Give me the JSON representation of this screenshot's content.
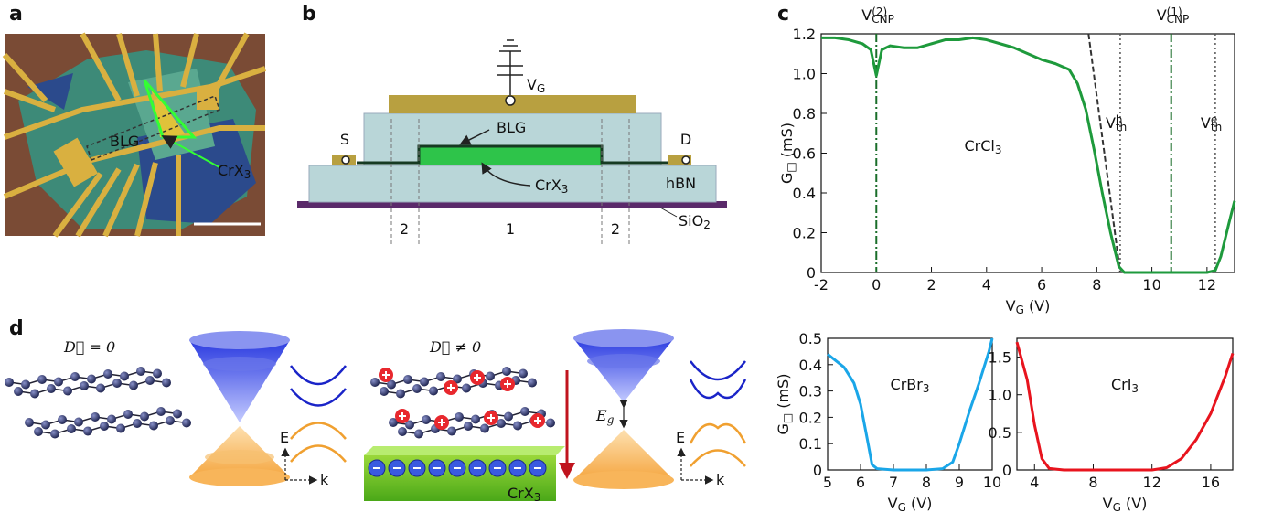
{
  "panel_labels": [
    "a",
    "b",
    "c",
    "d"
  ],
  "image_a": {
    "blg": "BLG",
    "crx": {
      "base": "CrX",
      "sub": "3"
    }
  },
  "device_b": {
    "vg": {
      "base": "V",
      "sub": "G"
    },
    "source": "S",
    "drain": "D",
    "blg": "BLG",
    "crx": {
      "base": "CrX",
      "sub": "3"
    },
    "hbn": "hBN",
    "sio2": {
      "base": "SiO",
      "sub": "2"
    },
    "regions": [
      "2",
      "1",
      "2"
    ]
  },
  "bands_d": {
    "left_title": "D⃗ = 0",
    "right_title": "D⃗ ≠ 0",
    "energy_axis": "E",
    "momentum_axis": "k",
    "gap": {
      "base": "E",
      "sub": "g"
    },
    "substrate": {
      "base": "CrX",
      "sub": "3"
    }
  },
  "chart_data": [
    {
      "type": "line",
      "label": {
        "base": "CrCl",
        "sub": "3"
      },
      "xlabel": {
        "base": "V",
        "sub": "G",
        "rest": " (V)"
      },
      "ylabel": {
        "base": "G",
        "sub": "□",
        "rest": " (mS)"
      },
      "xlim": [
        -2,
        13
      ],
      "ylim": [
        0,
        1.2
      ],
      "xticks": [
        -2,
        0,
        2,
        4,
        6,
        8,
        10,
        12
      ],
      "yticks": [
        0,
        0.2,
        0.4,
        0.6,
        0.8,
        {
          "value": 1,
          "label": "1.0"
        },
        1.2
      ],
      "x": [
        -2,
        -1.5,
        -1,
        -0.5,
        -0.2,
        0,
        0.2,
        0.5,
        1,
        1.5,
        2,
        2.5,
        3,
        3.5,
        4,
        4.5,
        5,
        5.5,
        6,
        6.5,
        7,
        7.3,
        7.6,
        7.9,
        8.2,
        8.5,
        8.8,
        9,
        10,
        11,
        12,
        12.3,
        12.5,
        12.8,
        13
      ],
      "series": [
        {
          "color": "#1e9a3c",
          "values": [
            1.18,
            1.18,
            1.17,
            1.15,
            1.12,
            0.99,
            1.12,
            1.14,
            1.13,
            1.13,
            1.15,
            1.17,
            1.17,
            1.18,
            1.17,
            1.15,
            1.13,
            1.1,
            1.07,
            1.05,
            1.02,
            0.95,
            0.82,
            0.62,
            0.4,
            0.2,
            0.03,
            0,
            0,
            0,
            0,
            0.01,
            0.08,
            0.25,
            0.36
          ]
        }
      ],
      "fit": {
        "x": [
          7.7,
          8.85
        ],
        "values": [
          1.2,
          0
        ],
        "color": "#333333"
      },
      "vlines": [
        {
          "x": 0,
          "style": "dashdot",
          "color": "#1a6e2a",
          "label": {
            "base": "V",
            "sub": "CNP",
            "sup": "(2)"
          }
        },
        {
          "x": 10.7,
          "style": "dashdot",
          "color": "#1a6e2a",
          "label": {
            "base": "V",
            "sub": "CNP",
            "sup": "(1)"
          }
        },
        {
          "x": 8.85,
          "style": "dotted",
          "color": "#555555",
          "label": {
            "base": "V",
            "sub": "th",
            "sup": "h"
          }
        },
        {
          "x": 12.3,
          "style": "dotted",
          "color": "#555555",
          "label": {
            "base": "V",
            "sub": "th",
            "sup": "e"
          }
        }
      ]
    },
    {
      "type": "line",
      "label": {
        "base": "CrBr",
        "sub": "3"
      },
      "xlabel": {
        "base": "V",
        "sub": "G",
        "rest": " (V)"
      },
      "ylabel": {
        "base": "G",
        "sub": "□",
        "rest": " (mS)"
      },
      "xlim": [
        5,
        10
      ],
      "ylim": [
        0,
        0.5
      ],
      "xticks": [
        5,
        6,
        7,
        8,
        9,
        10
      ],
      "yticks": [
        0,
        0.1,
        0.2,
        0.3,
        0.4,
        0.5
      ],
      "x": [
        5,
        5.5,
        5.8,
        6,
        6.2,
        6.35,
        6.5,
        7,
        7.5,
        8,
        8.5,
        8.8,
        9,
        9.3,
        9.6,
        9.9,
        10
      ],
      "series": [
        {
          "color": "#1aa6e8",
          "values": [
            0.44,
            0.39,
            0.33,
            0.25,
            0.12,
            0.02,
            0.005,
            0,
            0,
            0,
            0.005,
            0.03,
            0.1,
            0.22,
            0.33,
            0.45,
            0.5
          ]
        }
      ]
    },
    {
      "type": "line",
      "label": {
        "base": "CrI",
        "sub": "3"
      },
      "xlabel": {
        "base": "V",
        "sub": "G",
        "rest": " (V)"
      },
      "xlim": [
        2.8,
        17.5
      ],
      "ylim": [
        0,
        1.75
      ],
      "xticks": [
        4,
        8,
        12,
        16
      ],
      "yticks": [
        0,
        0.5,
        {
          "value": 1,
          "label": "1.0"
        },
        1.5
      ],
      "x": [
        2.8,
        3.5,
        4,
        4.5,
        5,
        6,
        8,
        10,
        12,
        13,
        14,
        15,
        16,
        17,
        17.5
      ],
      "series": [
        {
          "color": "#e8141e",
          "values": [
            1.7,
            1.2,
            0.6,
            0.15,
            0.02,
            0,
            0,
            0,
            0,
            0.03,
            0.15,
            0.4,
            0.75,
            1.25,
            1.55
          ]
        }
      ]
    }
  ]
}
